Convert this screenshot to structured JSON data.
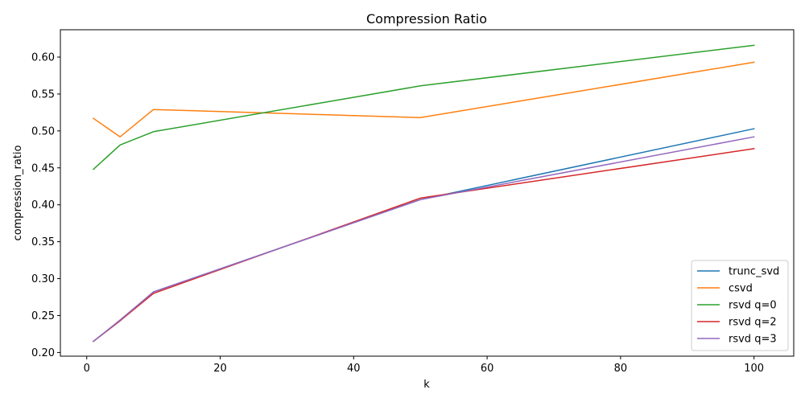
{
  "chart_data": {
    "type": "line",
    "title": "Compression Ratio",
    "xlabel": "k",
    "ylabel": "compression_ratio",
    "xlim": [
      -3.95,
      105.95
    ],
    "ylim": [
      0.195,
      0.637
    ],
    "xticks": [
      0,
      20,
      40,
      60,
      80,
      100
    ],
    "yticks": [
      0.2,
      0.25,
      0.3,
      0.35,
      0.4,
      0.45,
      0.5,
      0.55,
      0.6
    ],
    "xtick_labels": [
      "0",
      "20",
      "40",
      "60",
      "80",
      "100"
    ],
    "ytick_labels": [
      "0.20",
      "0.25",
      "0.30",
      "0.35",
      "0.40",
      "0.45",
      "0.50",
      "0.55",
      "0.60"
    ],
    "x": [
      1,
      5,
      10,
      50,
      100
    ],
    "grid": false,
    "legend_position": "lower-right",
    "series": [
      {
        "name": "trunc_svd",
        "color": "#1f77b4",
        "values": [
          0.215,
          0.243,
          0.282,
          0.407,
          0.503
        ]
      },
      {
        "name": "csvd",
        "color": "#ff7f0e",
        "values": [
          0.517,
          0.492,
          0.529,
          0.518,
          0.593
        ]
      },
      {
        "name": "rsvd q=0",
        "color": "#2ca02c",
        "values": [
          0.448,
          0.481,
          0.499,
          0.561,
          0.616
        ]
      },
      {
        "name": "rsvd q=2",
        "color": "#d62728",
        "values": [
          0.215,
          0.243,
          0.28,
          0.409,
          0.476
        ]
      },
      {
        "name": "rsvd q=3",
        "color": "#9467bd",
        "values": [
          0.215,
          0.244,
          0.282,
          0.407,
          0.492
        ]
      }
    ]
  }
}
